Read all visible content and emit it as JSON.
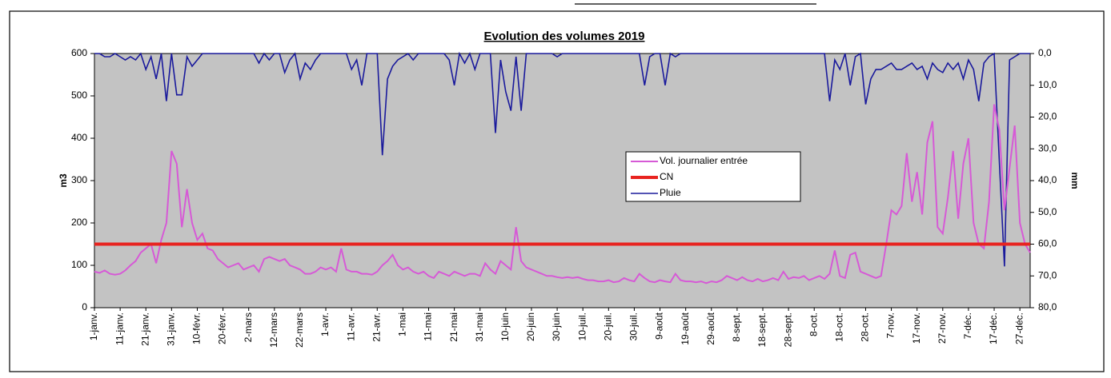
{
  "chart_data": {
    "type": "line",
    "title": "Evolution des volumes 2019",
    "ylabel": "m3",
    "y2label": "mm",
    "categories": [
      "1-janv.",
      null,
      null,
      null,
      null,
      "11-janv.",
      null,
      null,
      null,
      null,
      "21-janv.",
      null,
      null,
      null,
      null,
      "31-janv.",
      null,
      null,
      null,
      null,
      "10-févr.",
      null,
      null,
      null,
      null,
      "20-févr.",
      null,
      null,
      null,
      null,
      "2-mars",
      null,
      null,
      null,
      null,
      "12-mars",
      null,
      null,
      null,
      null,
      "22-mars",
      null,
      null,
      null,
      null,
      "1-avr.",
      null,
      null,
      null,
      null,
      "11-avr.",
      null,
      null,
      null,
      null,
      "21-avr.",
      null,
      null,
      null,
      null,
      "1-mai",
      null,
      null,
      null,
      null,
      "11-mai",
      null,
      null,
      null,
      null,
      "21-mai",
      null,
      null,
      null,
      null,
      "31-mai",
      null,
      null,
      null,
      null,
      "10-juin",
      null,
      null,
      null,
      null,
      "20-juin",
      null,
      null,
      null,
      null,
      "30-juin",
      null,
      null,
      null,
      null,
      "10-juil.",
      null,
      null,
      null,
      null,
      "20-juil.",
      null,
      null,
      null,
      null,
      "30-juil.",
      null,
      null,
      null,
      null,
      "9-août",
      null,
      null,
      null,
      null,
      "19-août",
      null,
      null,
      null,
      null,
      "29-août",
      null,
      null,
      null,
      null,
      "8-sept.",
      null,
      null,
      null,
      null,
      "18-sept.",
      null,
      null,
      null,
      null,
      "28-sept.",
      null,
      null,
      null,
      null,
      "8-oct.",
      null,
      null,
      null,
      null,
      "18-oct.",
      null,
      null,
      null,
      null,
      "28-oct.",
      null,
      null,
      null,
      null,
      "7-nov.",
      null,
      null,
      null,
      null,
      "17-nov.",
      null,
      null,
      null,
      null,
      "27-nov.",
      null,
      null,
      null,
      null,
      "7-déc.",
      null,
      null,
      null,
      null,
      "17-déc.",
      null,
      null,
      null,
      null,
      "27-déc.",
      null,
      null
    ],
    "series": [
      {
        "name": "Vol. journalier entrée",
        "color": "#d65ad6",
        "values": [
          85,
          82,
          88,
          80,
          78,
          80,
          88,
          100,
          110,
          130,
          140,
          150,
          105,
          160,
          200,
          370,
          340,
          190,
          280,
          200,
          160,
          175,
          140,
          135,
          115,
          105,
          95,
          100,
          105,
          90,
          95,
          100,
          85,
          115,
          120,
          115,
          110,
          115,
          100,
          95,
          90,
          80,
          80,
          85,
          95,
          90,
          95,
          85,
          140,
          90,
          85,
          85,
          80,
          80,
          78,
          85,
          100,
          110,
          125,
          100,
          90,
          95,
          85,
          80,
          85,
          75,
          70,
          85,
          80,
          75,
          85,
          80,
          75,
          80,
          80,
          75,
          105,
          90,
          80,
          110,
          100,
          90,
          190,
          110,
          95,
          90,
          85,
          80,
          75,
          75,
          72,
          70,
          72,
          70,
          72,
          68,
          65,
          65,
          62,
          62,
          65,
          60,
          62,
          70,
          65,
          62,
          80,
          70,
          62,
          60,
          65,
          62,
          60,
          80,
          65,
          62,
          62,
          60,
          62,
          58,
          62,
          60,
          65,
          75,
          70,
          65,
          72,
          65,
          62,
          68,
          62,
          65,
          70,
          65,
          85,
          68,
          72,
          70,
          75,
          65,
          70,
          75,
          68,
          80,
          135,
          75,
          70,
          125,
          130,
          85,
          80,
          75,
          70,
          75,
          150,
          230,
          220,
          240,
          365,
          250,
          320,
          220,
          390,
          440,
          190,
          175,
          260,
          370,
          210,
          340,
          400,
          200,
          150,
          140,
          250,
          480,
          420,
          230,
          330,
          430,
          200,
          150,
          130
        ]
      },
      {
        "name": "Pluie",
        "color": "#1a1a9c",
        "axis": "y2",
        "values": [
          0,
          0,
          1,
          1,
          0,
          1,
          2,
          1,
          2,
          0,
          5,
          1,
          8,
          0,
          15,
          0,
          13,
          13,
          1,
          4,
          2,
          0,
          0,
          0,
          0,
          0,
          0,
          0,
          0,
          0,
          0,
          0,
          3,
          0,
          2,
          0,
          0,
          6,
          2,
          0,
          8,
          3,
          5,
          2,
          0,
          0,
          0,
          0,
          0,
          0,
          5,
          2,
          10,
          0,
          0,
          0,
          32,
          8,
          4,
          2,
          1,
          0,
          2,
          0,
          0,
          0,
          0,
          0,
          0,
          2,
          10,
          0,
          3,
          0,
          5,
          0,
          0,
          0,
          25,
          2,
          12,
          18,
          1,
          18,
          0,
          0,
          0,
          0,
          0,
          0,
          1,
          0,
          0,
          0,
          0,
          0,
          0,
          0,
          0,
          0,
          0,
          0,
          0,
          0,
          0,
          0,
          0,
          10,
          1,
          0,
          0,
          10,
          0,
          1,
          0,
          0,
          0,
          0,
          0,
          0,
          0,
          0,
          0,
          0,
          0,
          0,
          0,
          0,
          0,
          0,
          0,
          0,
          0,
          0,
          0,
          0,
          0,
          0,
          0,
          0,
          0,
          0,
          0,
          15,
          2,
          5,
          0,
          10,
          1,
          0,
          16,
          8,
          5,
          5,
          4,
          3,
          5,
          5,
          4,
          3,
          5,
          4,
          8,
          3,
          5,
          6,
          3,
          5,
          3,
          8,
          2,
          5,
          15,
          3,
          1,
          0,
          34,
          67,
          2,
          1,
          0,
          0,
          0
        ]
      }
    ],
    "reference_lines": [
      {
        "name": "CN",
        "color": "#e8231f",
        "value": 150
      }
    ],
    "legend_order": [
      "Vol. journalier entrée",
      "CN",
      "Pluie"
    ],
    "ylim": [
      0,
      600
    ],
    "yticks": [
      0,
      100,
      200,
      300,
      400,
      500,
      600
    ],
    "y2lim": [
      0,
      80
    ],
    "y2_inverted": true,
    "y2ticks": [
      {
        "value": 0,
        "label": "0,0"
      },
      {
        "value": 10,
        "label": "10,0"
      },
      {
        "value": 20,
        "label": "20,0"
      },
      {
        "value": 30,
        "label": "30,0"
      },
      {
        "value": 40,
        "label": "40,0"
      },
      {
        "value": 50,
        "label": "50,0"
      },
      {
        "value": 60,
        "label": "60,0"
      },
      {
        "value": 70,
        "label": "70,0"
      },
      {
        "value": 80,
        "label": "80,0"
      }
    ],
    "plot_background": "#c3c3c3"
  }
}
